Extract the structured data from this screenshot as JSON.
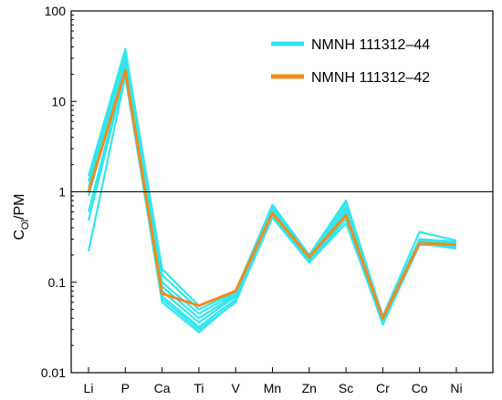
{
  "chart_data": {
    "type": "line",
    "ylabel_main": "C",
    "ylabel_sub": "Ol",
    "ylabel_rest": "/PM",
    "xlabel": "",
    "y_scale": "log",
    "ylim": [
      0.01,
      100
    ],
    "y_ticks": [
      "0.01",
      "0.1",
      "1",
      "10",
      "100"
    ],
    "y_tick_values": [
      0.01,
      0.1,
      1,
      10,
      100
    ],
    "reference_line": 1,
    "categories": [
      "Li",
      "P",
      "Ca",
      "Ti",
      "V",
      "Mn",
      "Zn",
      "Sc",
      "Cr",
      "Co",
      "Ni"
    ],
    "legend_position": "top-right",
    "legend": [
      {
        "name": "NMNH 111312–44",
        "color": "#33e6ee"
      },
      {
        "name": "NMNH 111312–42",
        "color": "#f28a1c"
      }
    ],
    "series_44": [
      {
        "values": [
          1.5,
          38,
          0.14,
          0.055,
          0.08,
          0.72,
          0.2,
          0.8,
          0.042,
          0.36,
          0.29
        ]
      },
      {
        "values": [
          1.3,
          33,
          0.12,
          0.05,
          0.078,
          0.68,
          0.19,
          0.75,
          0.04,
          0.3,
          0.28
        ]
      },
      {
        "values": [
          1.1,
          29,
          0.1,
          0.045,
          0.075,
          0.64,
          0.18,
          0.68,
          0.038,
          0.28,
          0.27
        ]
      },
      {
        "values": [
          0.9,
          26,
          0.09,
          0.04,
          0.072,
          0.6,
          0.175,
          0.6,
          0.036,
          0.27,
          0.26
        ]
      },
      {
        "values": [
          0.6,
          23,
          0.08,
          0.036,
          0.07,
          0.58,
          0.17,
          0.55,
          0.035,
          0.26,
          0.25
        ]
      },
      {
        "values": [
          0.48,
          21,
          0.07,
          0.032,
          0.065,
          0.55,
          0.165,
          0.5,
          0.034,
          0.265,
          0.24
        ]
      },
      {
        "values": [
          0.22,
          19,
          0.06,
          0.028,
          0.062,
          0.52,
          0.165,
          0.45,
          0.035,
          0.27,
          0.235
        ]
      },
      {
        "values": [
          1.0,
          24,
          0.065,
          0.03,
          0.06,
          0.6,
          0.18,
          0.62,
          0.037,
          0.29,
          0.27
        ]
      }
    ],
    "series_42": [
      {
        "values": [
          1.0,
          22,
          0.075,
          0.055,
          0.08,
          0.58,
          0.19,
          0.55,
          0.04,
          0.27,
          0.26
        ]
      }
    ]
  }
}
